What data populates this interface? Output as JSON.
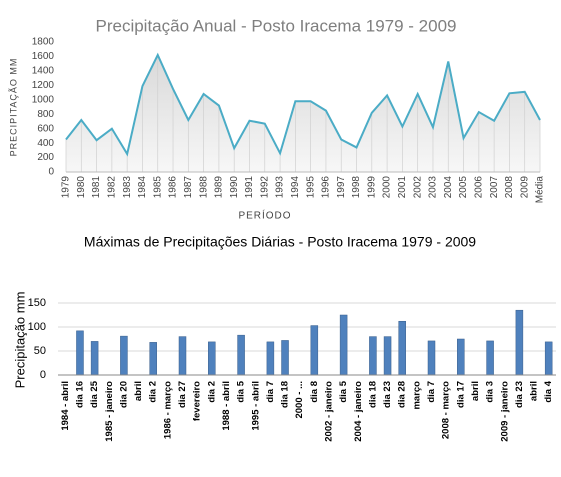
{
  "chart_data": [
    {
      "type": "line",
      "title": "Precipitação  Anual - Posto Iracema 1979 - 2009",
      "y_label": "PRECIPITAÇÃO  MM",
      "x_label": "PERÍODO",
      "categories": [
        "1979",
        "1980",
        "1981",
        "1982",
        "1983",
        "1984",
        "1985",
        "1986",
        "1987",
        "1988",
        "1989",
        "1990",
        "1991",
        "1992",
        "1993",
        "1994",
        "1995",
        "1996",
        "1997",
        "1998",
        "1999",
        "2000",
        "2001",
        "2002",
        "2003",
        "2004",
        "2005",
        "2006",
        "2007",
        "2008",
        "2009",
        "Média"
      ],
      "values": [
        450,
        720,
        440,
        600,
        250,
        1190,
        1620,
        1150,
        720,
        1080,
        920,
        330,
        710,
        670,
        260,
        980,
        980,
        850,
        450,
        340,
        820,
        1060,
        630,
        1080,
        620,
        1530,
        470,
        830,
        710,
        1090,
        1110,
        720
      ],
      "color": "#4bacc6",
      "ylim": [
        0,
        1800
      ],
      "yticks": [
        0,
        200,
        400,
        600,
        800,
        1000,
        1200,
        1400,
        1600,
        1800
      ],
      "grid": false
    },
    {
      "type": "bar",
      "title": "Máximas de Precipitações Diárias - Posto Iracema 1979 - 2009",
      "y_label": "Precipitação  mm",
      "categories": [
        [
          "1984 - abril",
          "dia 16"
        ],
        [
          "dia 25"
        ],
        [
          "1985 - janeiro",
          "dia 20"
        ],
        [
          "abril",
          "dia 2"
        ],
        [
          "1986 - março",
          "dia 27"
        ],
        [
          "fevereiro",
          "dia 2"
        ],
        [
          "1988 - abril",
          "dia 5"
        ],
        [
          "1995 - abril",
          "dia 7"
        ],
        [
          "dia 18"
        ],
        [
          "2000 - ...",
          "dia 8"
        ],
        [
          "2002 - janeiro",
          "dia 5"
        ],
        [
          "2004 - janeiro",
          "dia 18"
        ],
        [
          "dia 23"
        ],
        [
          "dia 28"
        ],
        [
          "março",
          "dia 7"
        ],
        [
          "2008 - março",
          "dia 17"
        ],
        [
          "abril",
          "dia 3"
        ],
        [
          "2009 - janeiro",
          "dia 23"
        ],
        [
          "abril",
          "dia 4"
        ]
      ],
      "values": [
        92,
        70,
        81,
        68,
        80,
        69,
        83,
        69,
        72,
        103,
        125,
        80,
        80,
        112,
        71,
        75,
        71,
        135,
        69
      ],
      "color": "#4f81bd",
      "ylim": [
        0,
        150
      ],
      "yticks": [
        0,
        50,
        100,
        150
      ],
      "grid": true
    }
  ]
}
